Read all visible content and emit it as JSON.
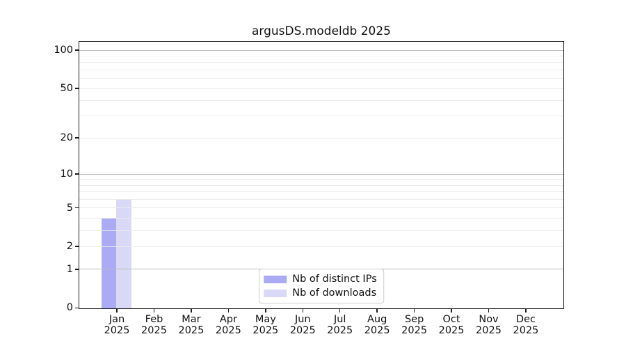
{
  "figure": {
    "background": "#ffffff"
  },
  "chart_data": {
    "type": "bar",
    "title": "argusDS.modeldb 2025",
    "x_months": [
      "Jan",
      "Feb",
      "Mar",
      "Apr",
      "May",
      "Jun",
      "Jul",
      "Aug",
      "Sep",
      "Oct",
      "Nov",
      "Dec"
    ],
    "x_year": "2025",
    "categories": [
      "Jan 2025",
      "Feb 2025",
      "Mar 2025",
      "Apr 2025",
      "May 2025",
      "Jun 2025",
      "Jul 2025",
      "Aug 2025",
      "Sep 2025",
      "Oct 2025",
      "Nov 2025",
      "Dec 2025"
    ],
    "series": [
      {
        "name": "Nb of distinct IPs",
        "color": "#aaaaf5",
        "values": [
          4,
          0,
          0,
          0,
          0,
          0,
          0,
          0,
          0,
          0,
          0,
          0
        ]
      },
      {
        "name": "Nb of downloads",
        "color": "#d9d9f7",
        "values": [
          6,
          0,
          0,
          0,
          0,
          0,
          0,
          0,
          0,
          0,
          0,
          0
        ]
      }
    ],
    "yscale": "log1p",
    "ylim": [
      0,
      115.5
    ],
    "yticks": [
      0,
      1,
      2,
      5,
      10,
      20,
      50,
      100
    ],
    "major_gridlines": [
      1,
      10,
      100
    ],
    "minor_gridlines": [
      2,
      3,
      4,
      5,
      6,
      7,
      8,
      9,
      20,
      30,
      40,
      50,
      60,
      70,
      80,
      90
    ],
    "grid": true,
    "grid_above_bars": true,
    "legend_position": "lower center",
    "legend_entries": [
      "Nb of distinct IPs",
      "Nb of downloads"
    ],
    "axis_color": "#1c1c1c",
    "major_grid_color": "#bcbcbc",
    "minor_grid_color": "#ebebeb"
  }
}
